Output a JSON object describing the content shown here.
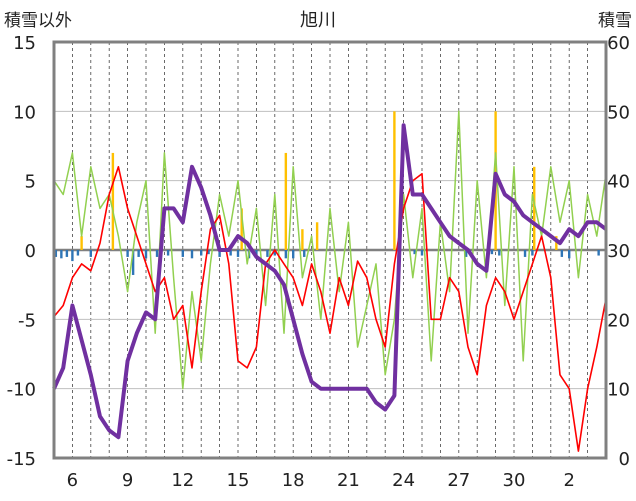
{
  "chart_data": {
    "type": "line",
    "title": "旭川",
    "ylabel_left": "積雪以外",
    "ylabel_right": "積雪",
    "ylim_left": [
      -15,
      15
    ],
    "ylim_right": [
      0,
      60
    ],
    "yticks_left": [
      "15",
      "10",
      "5",
      "0",
      "-5",
      "-10",
      "-15"
    ],
    "yticks_right": [
      "60",
      "50",
      "40",
      "30",
      "20",
      "10",
      "0"
    ],
    "xlim_days": [
      0,
      30
    ],
    "xtick_labels": [
      "6",
      "9",
      "12",
      "15",
      "18",
      "21",
      "24",
      "27",
      "30",
      "2"
    ],
    "grid": "vertical dashed daily",
    "colors": {
      "temperature": "#ff0000",
      "anomaly": "#92d050",
      "snow_depth": "#7030a0",
      "snowfall_bar": "#ffc000",
      "precip_bar": "#2e75b6",
      "frame": "#808080"
    },
    "series": [
      {
        "key": "temperature",
        "axis": "left",
        "x": [
          0,
          0.5,
          1,
          1.5,
          2,
          2.5,
          3,
          3.5,
          4,
          4.5,
          5,
          5.5,
          6,
          6.5,
          7,
          7.5,
          8,
          8.5,
          9,
          9.5,
          10,
          10.5,
          11,
          11.5,
          12,
          12.5,
          13,
          13.5,
          14,
          14.5,
          15,
          15.5,
          16,
          16.5,
          17,
          17.5,
          18,
          18.5,
          19,
          19.5,
          20,
          20.5,
          21,
          21.5,
          22,
          22.5,
          23,
          23.5,
          24,
          24.5,
          25,
          25.5,
          26,
          26.5,
          27,
          27.5,
          28,
          28.5,
          29,
          29.5,
          30
        ],
        "values": [
          -4.8,
          -4,
          -2,
          -1,
          -1.5,
          0.5,
          4,
          6,
          3,
          1,
          -1,
          -3,
          -2,
          -5,
          -4,
          -8.5,
          -3,
          1.5,
          2.5,
          -1,
          -8,
          -8.5,
          -7,
          -1,
          0,
          -1,
          -2,
          -4,
          -1,
          -3,
          -6,
          -2,
          -4,
          -0.8,
          -2,
          -5,
          -7,
          -1,
          3,
          5,
          5.5,
          -5,
          -5,
          -2,
          -3,
          -7,
          -9,
          -4,
          -2,
          -3,
          -5,
          -3,
          -1,
          1,
          -2,
          -9,
          -10,
          -14.5,
          -10,
          -7,
          -3.5
        ]
      },
      {
        "key": "anomaly",
        "axis": "left",
        "x": [
          0,
          0.5,
          1,
          1.5,
          2,
          2.5,
          3,
          3.5,
          4,
          4.5,
          5,
          5.5,
          6,
          6.5,
          7,
          7.5,
          8,
          8.5,
          9,
          9.5,
          10,
          10.5,
          11,
          11.5,
          12,
          12.5,
          13,
          13.5,
          14,
          14.5,
          15,
          15.5,
          16,
          16.5,
          17,
          17.5,
          18,
          18.5,
          19,
          19.5,
          20,
          20.5,
          21,
          21.5,
          22,
          22.5,
          23,
          23.5,
          24,
          24.5,
          25,
          25.5,
          26,
          26.5,
          27,
          27.5,
          28,
          28.5,
          29,
          29.5,
          30
        ],
        "values": [
          5,
          4,
          7,
          1,
          6,
          3,
          4,
          1,
          -3,
          2,
          5,
          -6,
          7,
          -2,
          -10,
          -3,
          -8,
          -1,
          4,
          1,
          5,
          -1,
          3,
          -4,
          4,
          -6,
          6,
          -2,
          1,
          -5,
          3,
          -3,
          2,
          -7,
          -4,
          -1,
          -9,
          -5,
          4,
          -2,
          3,
          -8,
          2,
          -3,
          10,
          -6,
          5,
          -2,
          7,
          -4,
          6,
          -8,
          4,
          1,
          6,
          2,
          5,
          -2,
          4,
          1,
          5.5
        ]
      },
      {
        "key": "snow_depth",
        "axis": "right",
        "x": [
          0,
          0.5,
          1,
          1.5,
          2,
          2.5,
          3,
          3.5,
          4,
          4.5,
          5,
          5.5,
          6,
          6.5,
          7,
          7.5,
          8,
          8.5,
          9,
          9.5,
          10,
          10.5,
          11,
          11.5,
          12,
          12.5,
          13,
          13.5,
          14,
          14.5,
          15,
          15.5,
          16,
          16.5,
          17,
          17.5,
          18,
          18.5,
          19,
          19.5,
          20,
          20.5,
          21,
          21.5,
          22,
          22.5,
          23,
          23.5,
          24,
          24.5,
          25,
          25.5,
          26,
          26.5,
          27,
          27.5,
          28,
          28.5,
          29,
          29.5,
          30
        ],
        "values": [
          10,
          13,
          22,
          17,
          12,
          6,
          4,
          3,
          14,
          18,
          21,
          20,
          36,
          36,
          34,
          42,
          39,
          35,
          30,
          30,
          32,
          31,
          29,
          28,
          27,
          25,
          20,
          15,
          11,
          10,
          10,
          10,
          10,
          10,
          10,
          8,
          7,
          9,
          48,
          38,
          38,
          36,
          34,
          32,
          31,
          30,
          28,
          27,
          41,
          38,
          37,
          35,
          34,
          33,
          32,
          31,
          33,
          32,
          34,
          34,
          33
        ]
      },
      {
        "key": "snowfall_bar",
        "axis": "left",
        "x": [
          1.5,
          3.2,
          10.2,
          12.6,
          13.5,
          14.3,
          18.5,
          24,
          26.1,
          27.3
        ],
        "values": [
          1,
          7,
          3,
          7,
          1.5,
          2,
          10,
          10,
          6,
          1
        ]
      },
      {
        "key": "precip_bar",
        "axis": "left",
        "x": [
          0.1,
          0.4,
          0.7,
          1.0,
          1.3,
          2.0,
          4.0,
          4.3,
          4.6,
          5.0,
          5.6,
          6.2,
          7.0,
          7.5,
          8.0,
          8.4,
          9.0,
          9.6,
          10.0,
          10.6,
          11.0,
          11.6,
          12.0,
          12.6,
          13.0,
          13.6,
          19.6,
          20.0,
          22.4,
          23.8,
          24.2,
          25.6,
          26.0,
          27.6,
          28.0,
          29.6,
          30.0
        ],
        "values": [
          -0.5,
          -0.6,
          -0.5,
          -0.8,
          -0.4,
          -0.5,
          -0.5,
          -1.8,
          -0.5,
          -0.6,
          -0.5,
          -0.4,
          -0.5,
          -0.6,
          -0.4,
          -0.3,
          -0.5,
          -0.4,
          -0.5,
          -0.6,
          -0.5,
          -0.5,
          -0.4,
          -0.6,
          -0.6,
          -0.5,
          -0.3,
          -0.4,
          -0.5,
          -0.3,
          -0.4,
          -0.5,
          -0.4,
          -0.5,
          -0.6,
          -0.4,
          -0.3
        ]
      }
    ]
  }
}
